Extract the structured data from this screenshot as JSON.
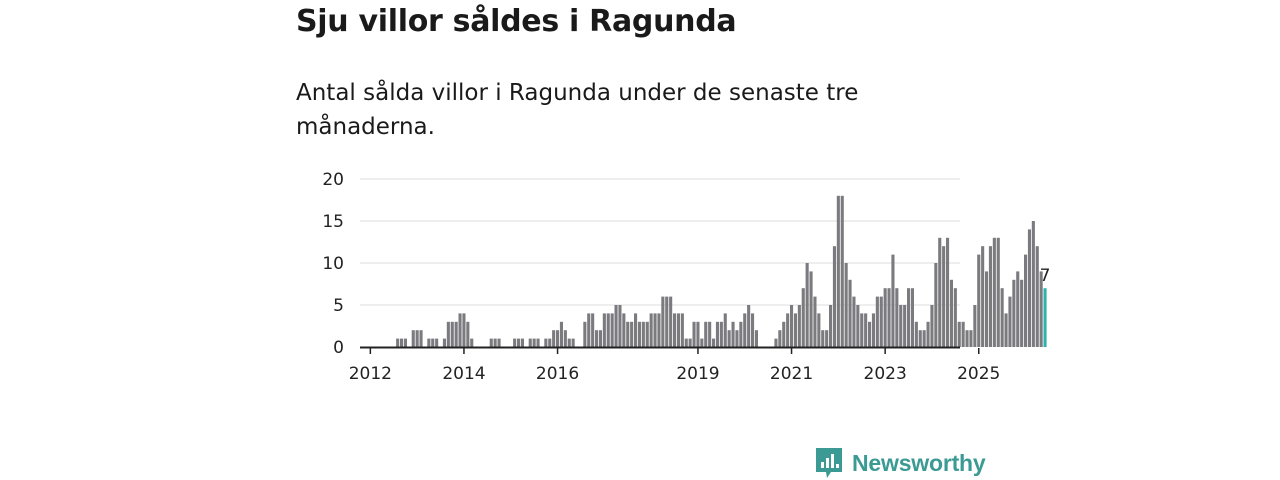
{
  "title": "Sju villor såldes i Ragunda",
  "subtitle": "Antal sålda villor i Ragunda under de senaste tre månaderna.",
  "brand": {
    "name": "Newsworthy",
    "color": "#3b9b94"
  },
  "colors": {
    "bar": "#7a7a7f",
    "highlight": "#2fb3a8",
    "grid": "#dddddd",
    "axis": "#222222"
  },
  "chart_data": {
    "type": "bar",
    "title": "Sju villor såldes i Ragunda",
    "subtitle": "Antal sålda villor i Ragunda under de senaste tre månaderna.",
    "xlabel": "",
    "ylabel": "",
    "ylim": [
      0,
      20
    ],
    "yticks": [
      0,
      5,
      10,
      15,
      20
    ],
    "grid": true,
    "start_period": "2011-11",
    "period": "month",
    "xtick_labels": [
      {
        "label": "2012",
        "period": "2012-01"
      },
      {
        "label": "2014",
        "period": "2014-01"
      },
      {
        "label": "2016",
        "period": "2016-01"
      },
      {
        "label": "2019",
        "period": "2019-01"
      },
      {
        "label": "2021",
        "period": "2021-01"
      },
      {
        "label": "2023",
        "period": "2023-01"
      },
      {
        "label": "2025",
        "period": "2025-01"
      }
    ],
    "values": [
      0,
      0,
      0,
      0,
      0,
      0,
      0,
      0,
      0,
      1,
      1,
      1,
      0,
      2,
      2,
      2,
      0,
      1,
      1,
      1,
      0,
      1,
      3,
      3,
      3,
      4,
      4,
      3,
      1,
      0,
      0,
      0,
      0,
      1,
      1,
      1,
      0,
      0,
      0,
      1,
      1,
      1,
      0,
      1,
      1,
      1,
      0,
      1,
      1,
      2,
      2,
      3,
      2,
      1,
      1,
      0,
      0,
      3,
      4,
      4,
      2,
      2,
      4,
      4,
      4,
      5,
      5,
      4,
      3,
      3,
      4,
      3,
      3,
      3,
      4,
      4,
      4,
      6,
      6,
      6,
      4,
      4,
      4,
      1,
      1,
      3,
      3,
      1,
      3,
      3,
      1,
      3,
      3,
      4,
      2,
      3,
      2,
      3,
      4,
      5,
      4,
      2,
      0,
      0,
      0,
      0,
      1,
      2,
      3,
      4,
      5,
      4,
      5,
      7,
      10,
      9,
      6,
      4,
      2,
      2,
      5,
      12,
      18,
      18,
      10,
      8,
      6,
      5,
      4,
      4,
      3,
      4,
      6,
      6,
      7,
      7,
      11,
      7,
      5,
      5,
      7,
      7,
      3,
      2,
      2,
      3,
      5,
      10,
      13,
      12,
      13,
      8,
      7,
      3,
      3,
      2,
      2,
      5,
      11,
      12,
      9,
      12,
      13,
      13,
      7,
      4,
      6,
      8,
      9,
      8,
      11,
      14,
      15,
      12,
      9,
      7
    ],
    "highlight": {
      "period": "last",
      "value": 7,
      "label": "7"
    }
  }
}
